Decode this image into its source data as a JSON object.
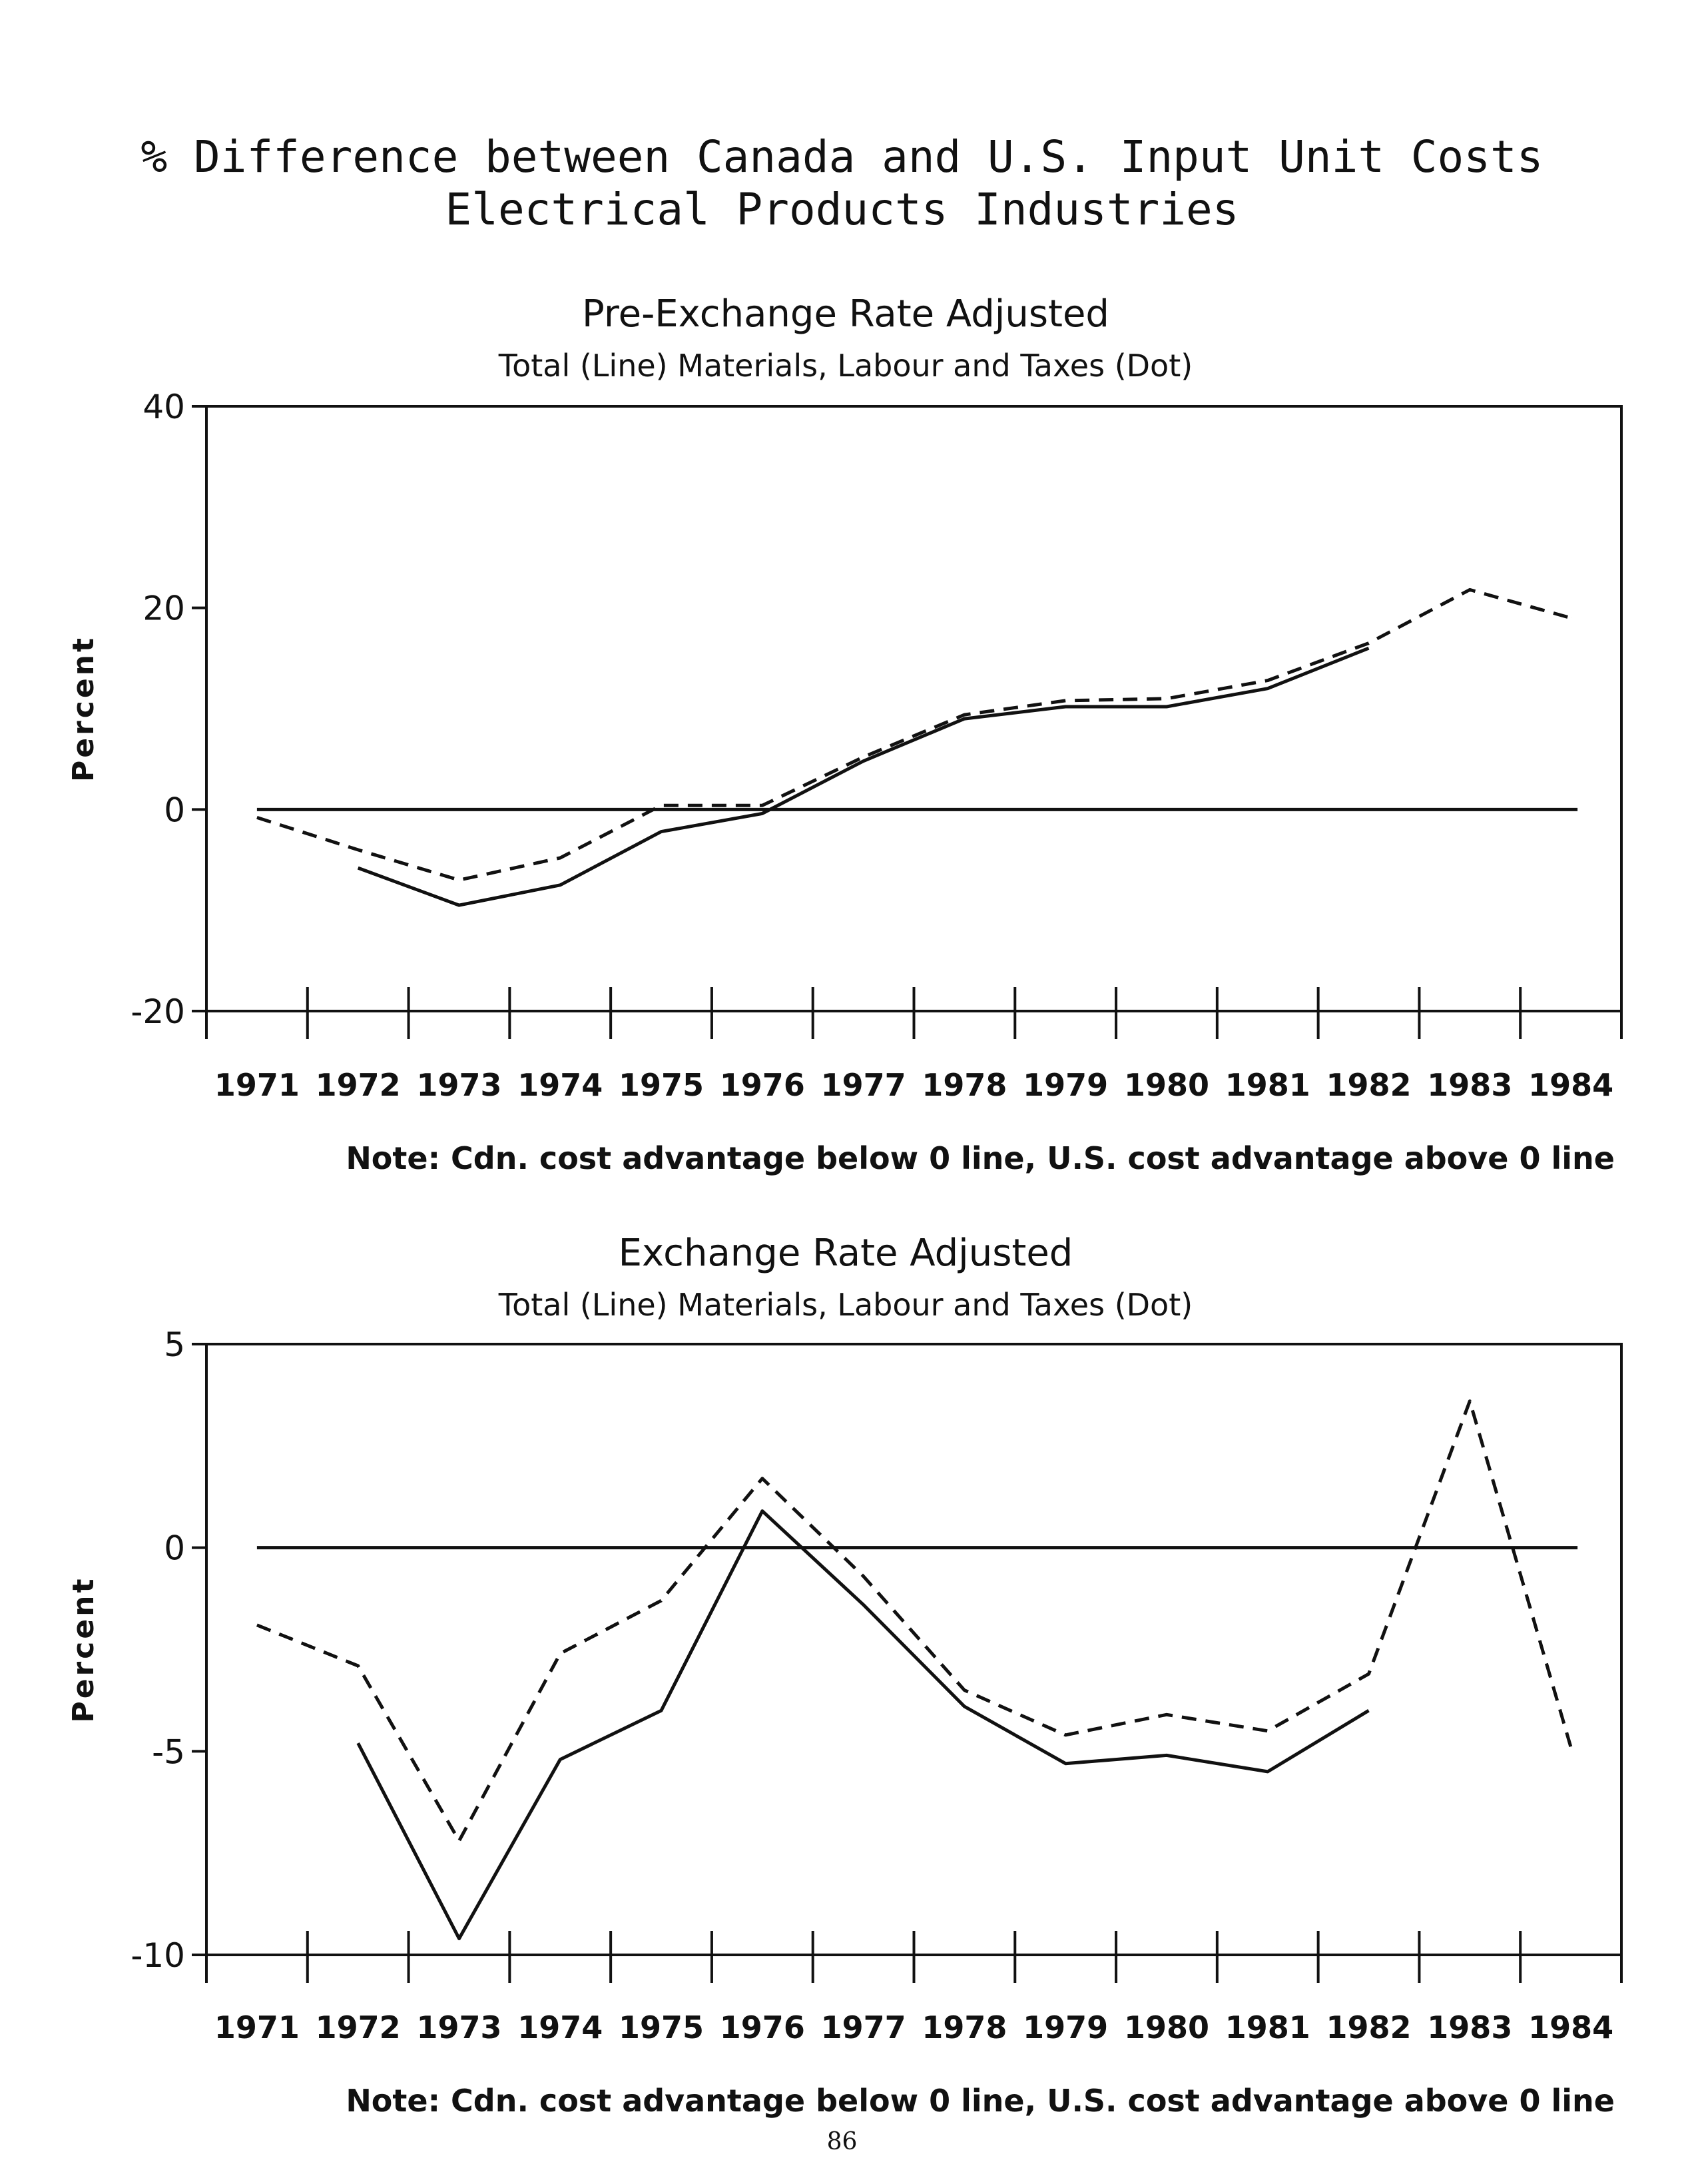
{
  "title_line1": "% Difference between Canada and U.S. Input Unit Costs",
  "title_line2": "Electrical Products Industries",
  "page_number": "86",
  "chart_data": [
    {
      "type": "line",
      "title": "Pre-Exchange Rate Adjusted",
      "subtitle": "Total (Line)   Materials, Labour and Taxes (Dot)",
      "ylabel": "Percent",
      "note": "Note: Cdn. cost advantage below 0 line, U.S. cost advantage above 0 line",
      "ylim": [
        -20,
        40
      ],
      "yticks": [
        "-20",
        "0",
        "20",
        "40"
      ],
      "categories": [
        "1971",
        "1972",
        "1973",
        "1974",
        "1975",
        "1976",
        "1977",
        "1978",
        "1979",
        "1980",
        "1981",
        "1982",
        "1983",
        "1984"
      ],
      "reference_line": 0,
      "series": [
        {
          "style": "solid",
          "values": [
            null,
            -5.8,
            -9.5,
            -7.5,
            -2.2,
            -0.4,
            4.8,
            9.0,
            10.2,
            10.2,
            12.0,
            16.0,
            null,
            null
          ]
        },
        {
          "style": "dashed",
          "values": [
            -0.8,
            -4.0,
            -7.0,
            -4.8,
            0.4,
            0.4,
            5.2,
            9.4,
            10.8,
            11.0,
            12.8,
            16.5,
            21.8,
            19.0
          ]
        }
      ]
    },
    {
      "type": "line",
      "title": "Exchange Rate Adjusted",
      "subtitle": "Total (Line)   Materials, Labour and Taxes (Dot)",
      "ylabel": "Percent",
      "note": "Note: Cdn. cost advantage below 0 line, U.S. cost advantage above 0 line",
      "ylim": [
        -10,
        5
      ],
      "yticks": [
        "-10",
        "-5",
        "0",
        "5"
      ],
      "categories": [
        "1971",
        "1972",
        "1973",
        "1974",
        "1975",
        "1976",
        "1977",
        "1978",
        "1979",
        "1980",
        "1981",
        "1982",
        "1983",
        "1984"
      ],
      "reference_line": 0,
      "series": [
        {
          "style": "solid",
          "values": [
            null,
            -4.8,
            -9.6,
            -5.2,
            -4.0,
            0.9,
            -1.4,
            -3.9,
            -5.3,
            -5.1,
            -5.5,
            -4.0,
            null,
            null
          ]
        },
        {
          "style": "dashed",
          "values": [
            -1.9,
            -2.9,
            -7.2,
            -2.6,
            -1.3,
            1.7,
            -0.7,
            -3.5,
            -4.6,
            -4.1,
            -4.5,
            -3.1,
            3.6,
            -4.9
          ]
        }
      ]
    }
  ]
}
